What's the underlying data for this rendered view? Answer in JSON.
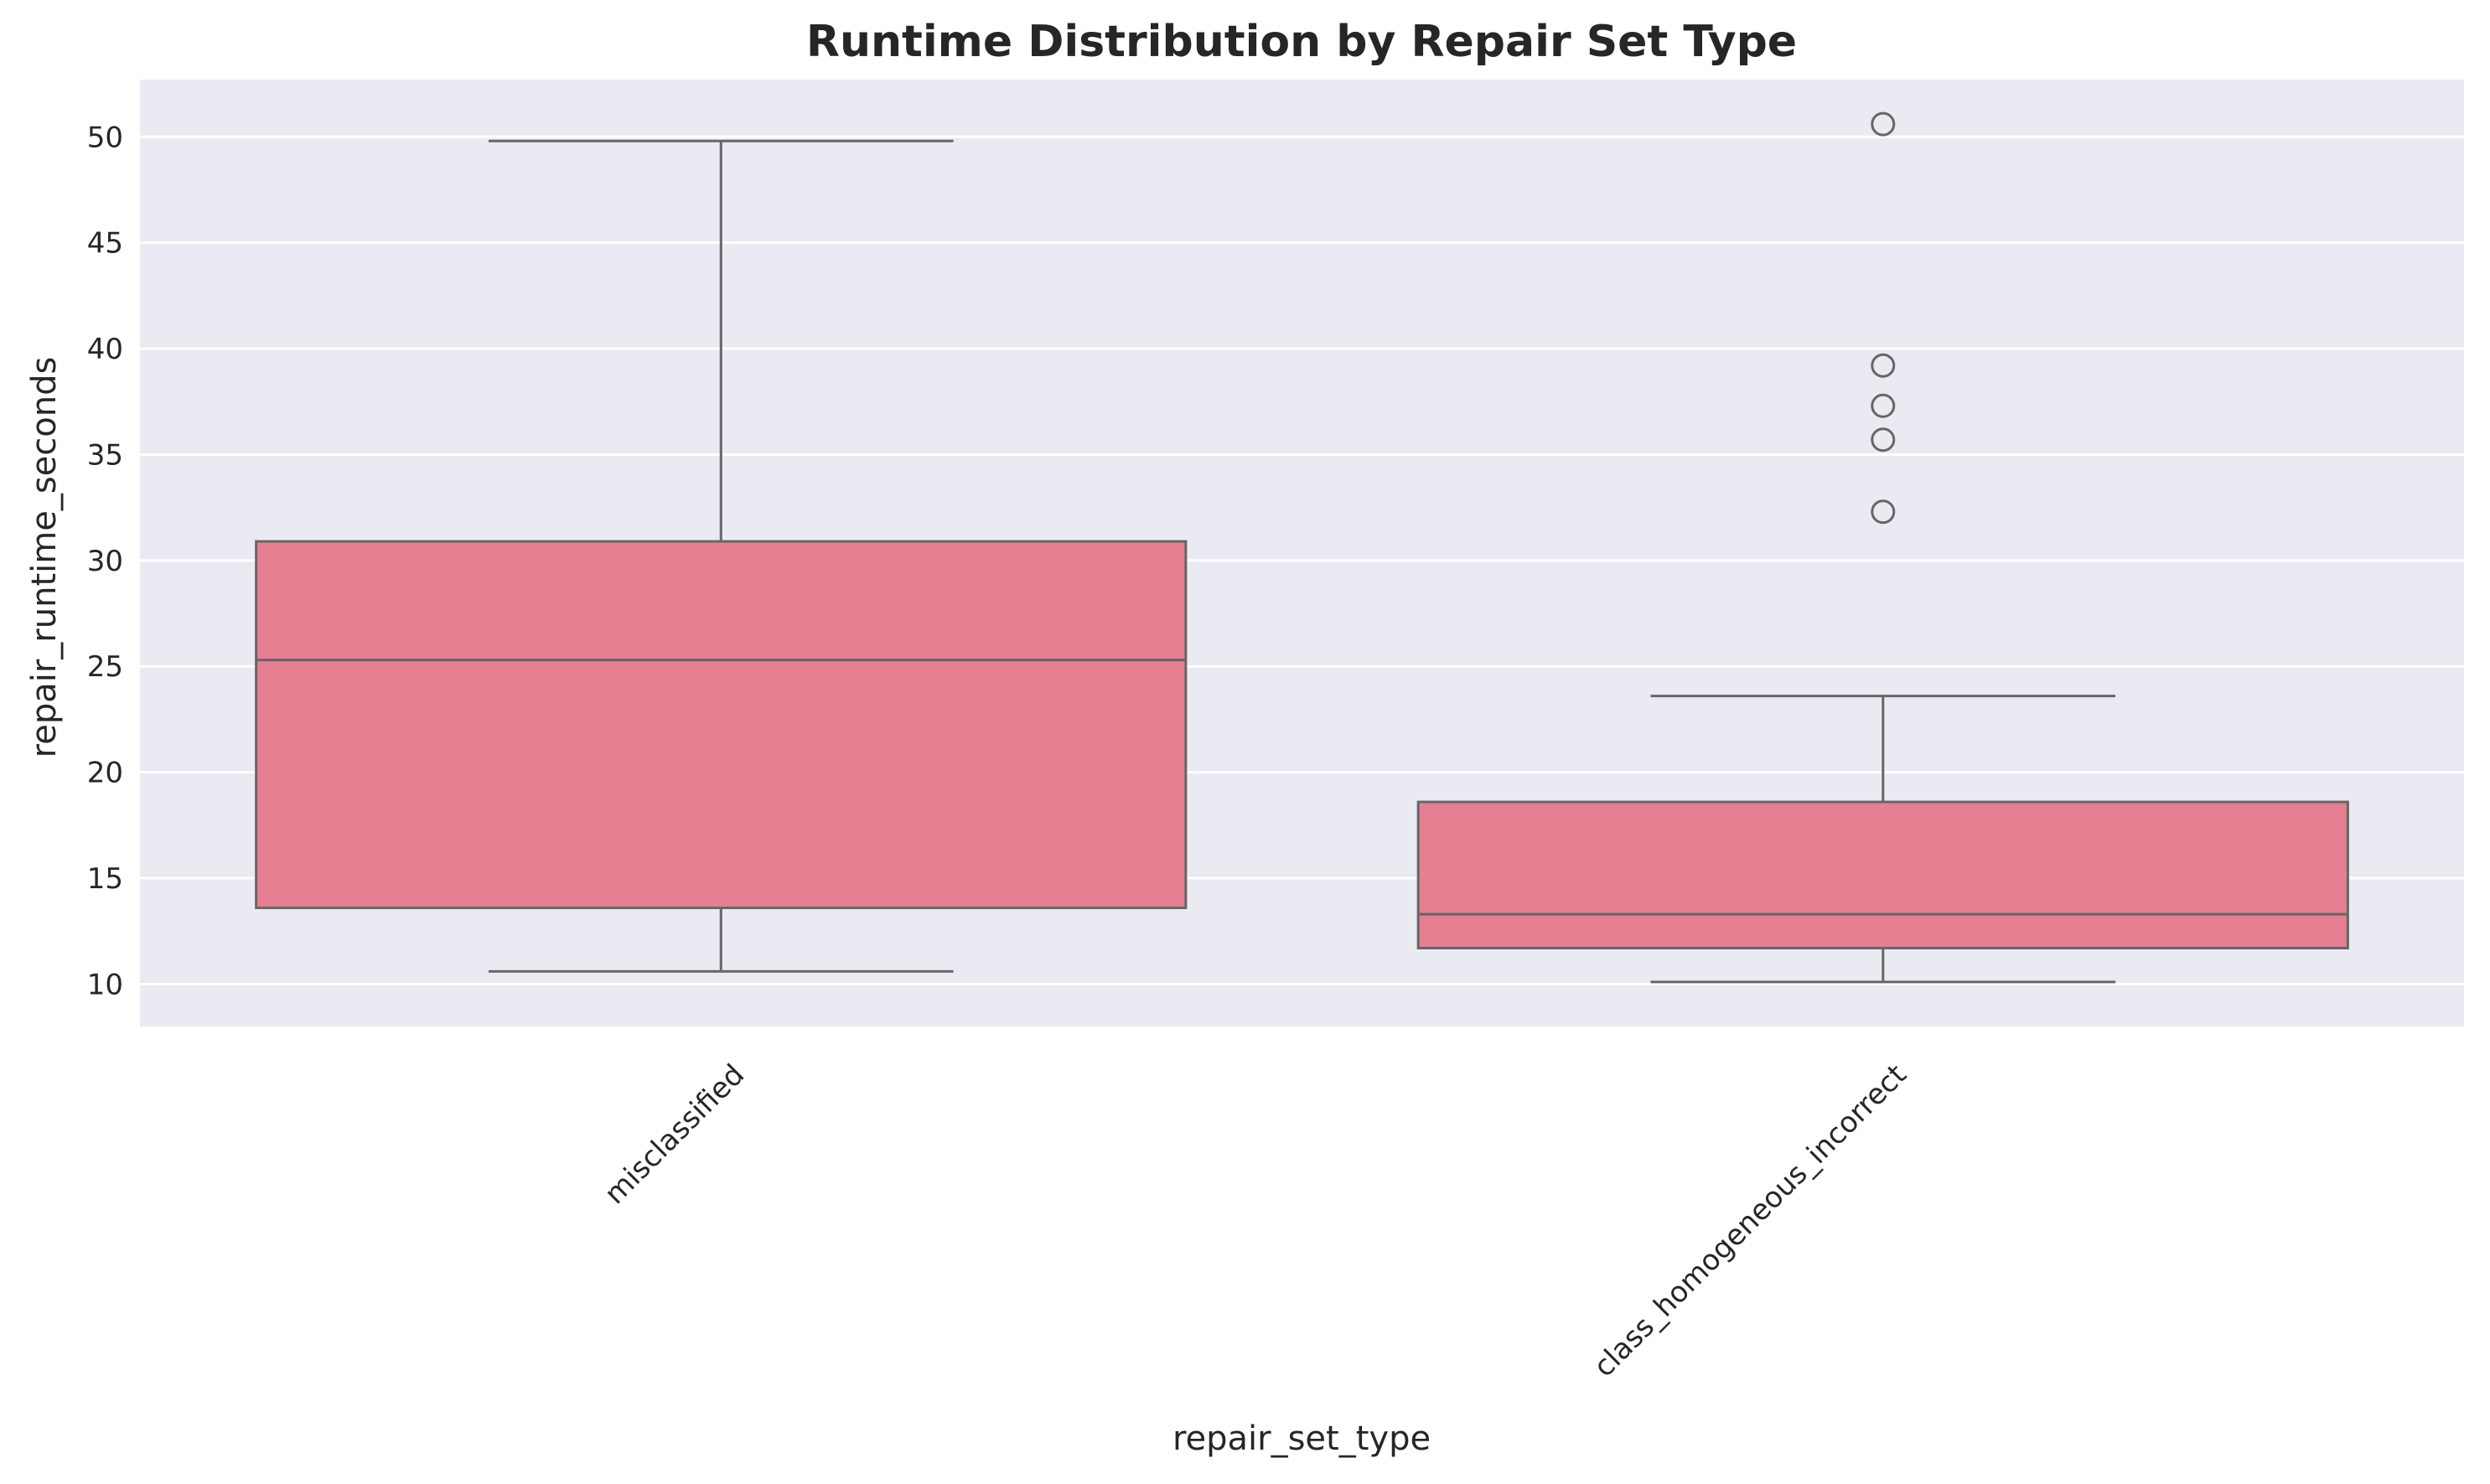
{
  "chart_data": {
    "type": "box",
    "title": "Runtime Distribution by Repair Set Type",
    "xlabel": "repair_set_type",
    "ylabel": "repair_runtime_seconds",
    "ylim": [
      8,
      52.7
    ],
    "yticks": [
      10,
      15,
      20,
      25,
      30,
      35,
      40,
      45,
      50
    ],
    "categories": [
      "misclassified",
      "class_homogeneous_incorrect"
    ],
    "boxes": [
      {
        "category": "misclassified",
        "whisker_low": 10.6,
        "q1": 13.6,
        "median": 25.3,
        "q3": 30.9,
        "whisker_high": 49.8,
        "outliers": []
      },
      {
        "category": "class_homogeneous_incorrect",
        "whisker_low": 10.1,
        "q1": 11.7,
        "median": 13.3,
        "q3": 18.6,
        "whisker_high": 23.6,
        "outliers": [
          50.6,
          39.2,
          37.3,
          35.7,
          32.3
        ]
      }
    ],
    "grid": true,
    "legend": "none",
    "colors": {
      "box_fill": "#e77f93",
      "line": "#666666",
      "plot_bg": "#eaeaf2",
      "grid": "#ffffff"
    }
  }
}
